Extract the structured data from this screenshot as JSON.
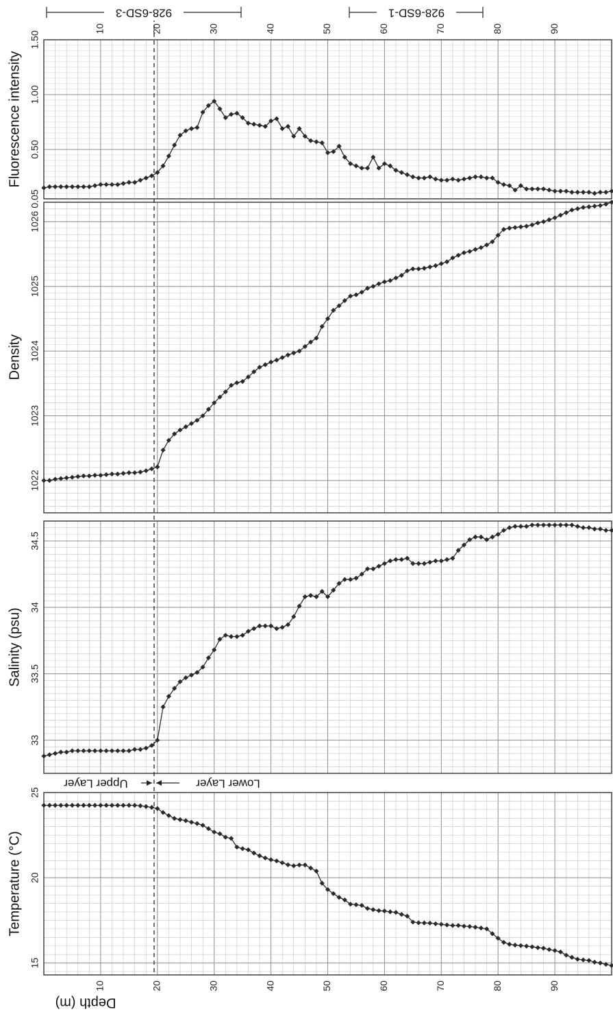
{
  "chart_data": [
    {
      "type": "line",
      "ylabel": "Fluorescence intensity",
      "xlabel": "",
      "xlim": [
        0,
        100
      ],
      "ylim": [
        0.05,
        1.5
      ],
      "x_ticks": [
        "10",
        "20",
        "30",
        "40",
        "50",
        "60",
        "70",
        "80",
        "90"
      ],
      "y_ticks": [
        "0.05",
        "0.50",
        "1.00",
        "1.50"
      ],
      "y_tick_values": [
        0.05,
        0.5,
        1.0,
        1.5
      ],
      "grid": true,
      "series": [
        {
          "x": [
            0,
            1,
            2,
            3,
            4,
            5,
            6,
            7,
            8,
            9,
            10,
            11,
            12,
            13,
            14,
            15,
            16,
            17,
            18,
            19,
            20,
            21,
            22,
            23,
            24,
            25,
            26,
            27,
            28,
            29,
            30,
            31,
            32,
            33,
            34,
            35,
            36,
            37,
            38,
            39,
            40,
            41,
            42,
            43,
            44,
            45,
            46,
            47,
            48,
            49,
            50,
            51,
            52,
            53,
            54,
            55,
            56,
            57,
            58,
            59,
            60,
            61,
            62,
            63,
            64,
            65,
            66,
            67,
            68,
            69,
            70,
            71,
            72,
            73,
            74,
            75,
            76,
            77,
            78,
            79,
            80,
            81,
            82,
            83,
            84,
            85,
            86,
            87,
            88,
            89,
            90,
            91,
            92,
            93,
            94,
            95,
            96,
            97,
            98,
            99,
            100
          ],
          "values": [
            0.15,
            0.16,
            0.16,
            0.16,
            0.16,
            0.16,
            0.16,
            0.16,
            0.16,
            0.17,
            0.18,
            0.18,
            0.18,
            0.18,
            0.19,
            0.2,
            0.2,
            0.22,
            0.24,
            0.26,
            0.29,
            0.35,
            0.44,
            0.54,
            0.63,
            0.67,
            0.69,
            0.7,
            0.84,
            0.9,
            0.94,
            0.87,
            0.79,
            0.82,
            0.83,
            0.79,
            0.74,
            0.73,
            0.72,
            0.71,
            0.76,
            0.78,
            0.69,
            0.71,
            0.62,
            0.69,
            0.62,
            0.58,
            0.57,
            0.56,
            0.47,
            0.48,
            0.53,
            0.43,
            0.37,
            0.35,
            0.33,
            0.33,
            0.43,
            0.33,
            0.37,
            0.35,
            0.31,
            0.29,
            0.27,
            0.25,
            0.24,
            0.24,
            0.25,
            0.23,
            0.22,
            0.22,
            0.23,
            0.22,
            0.23,
            0.24,
            0.25,
            0.25,
            0.24,
            0.24,
            0.2,
            0.18,
            0.17,
            0.13,
            0.17,
            0.14,
            0.14,
            0.14,
            0.14,
            0.13,
            0.12,
            0.12,
            0.12,
            0.11,
            0.11,
            0.11,
            0.11,
            0.1,
            0.11,
            0.11,
            0.12
          ]
        }
      ]
    },
    {
      "type": "line",
      "ylabel": "Density",
      "xlabel": "",
      "xlim": [
        0,
        100
      ],
      "ylim": [
        1021.5,
        1026.3
      ],
      "x_ticks": [],
      "y_ticks": [
        "1022",
        "1023",
        "1024",
        "1025",
        "1026"
      ],
      "y_tick_values": [
        1022,
        1023,
        1024,
        1025,
        1026
      ],
      "grid": true,
      "series": [
        {
          "x": [
            0,
            1,
            2,
            3,
            4,
            5,
            6,
            7,
            8,
            9,
            10,
            11,
            12,
            13,
            14,
            15,
            16,
            17,
            18,
            19,
            20,
            21,
            22,
            23,
            24,
            25,
            26,
            27,
            28,
            29,
            30,
            31,
            32,
            33,
            34,
            35,
            36,
            37,
            38,
            39,
            40,
            41,
            42,
            43,
            44,
            45,
            46,
            47,
            48,
            49,
            50,
            51,
            52,
            53,
            54,
            55,
            56,
            57,
            58,
            59,
            60,
            61,
            62,
            63,
            64,
            65,
            66,
            67,
            68,
            69,
            70,
            71,
            72,
            73,
            74,
            75,
            76,
            77,
            78,
            79,
            80,
            81,
            82,
            83,
            84,
            85,
            86,
            87,
            88,
            89,
            90,
            91,
            92,
            93,
            94,
            95,
            96,
            97,
            98,
            99,
            100
          ],
          "values": [
            1022.0,
            1022.0,
            1022.02,
            1022.03,
            1022.04,
            1022.05,
            1022.06,
            1022.07,
            1022.07,
            1022.08,
            1022.08,
            1022.09,
            1022.1,
            1022.1,
            1022.11,
            1022.12,
            1022.12,
            1022.13,
            1022.15,
            1022.18,
            1022.21,
            1022.47,
            1022.62,
            1022.72,
            1022.78,
            1022.83,
            1022.88,
            1022.93,
            1023.0,
            1023.1,
            1023.2,
            1023.29,
            1023.37,
            1023.47,
            1023.51,
            1023.53,
            1023.6,
            1023.68,
            1023.75,
            1023.79,
            1023.83,
            1023.86,
            1023.9,
            1023.94,
            1023.97,
            1024.0,
            1024.07,
            1024.14,
            1024.2,
            1024.38,
            1024.5,
            1024.63,
            1024.7,
            1024.78,
            1024.85,
            1024.87,
            1024.91,
            1024.97,
            1025.0,
            1025.04,
            1025.07,
            1025.09,
            1025.13,
            1025.17,
            1025.24,
            1025.27,
            1025.27,
            1025.28,
            1025.3,
            1025.32,
            1025.35,
            1025.38,
            1025.44,
            1025.48,
            1025.52,
            1025.54,
            1025.57,
            1025.6,
            1025.64,
            1025.69,
            1025.79,
            1025.88,
            1025.9,
            1025.91,
            1025.92,
            1025.93,
            1025.95,
            1025.98,
            1026.0,
            1026.03,
            1026.06,
            1026.1,
            1026.14,
            1026.18,
            1026.2,
            1026.22,
            1026.23,
            1026.24,
            1026.25,
            1026.27,
            1026.3
          ]
        }
      ]
    },
    {
      "type": "line",
      "ylabel": "Salinity (psu)",
      "xlabel": "",
      "xlim": [
        0,
        100
      ],
      "ylim": [
        32.75,
        34.65
      ],
      "x_ticks": [],
      "y_ticks": [
        "33",
        "33.5",
        "34",
        "34.5"
      ],
      "y_tick_values": [
        33,
        33.5,
        34,
        34.5
      ],
      "grid": true,
      "series": [
        {
          "x": [
            0,
            1,
            2,
            3,
            4,
            5,
            6,
            7,
            8,
            9,
            10,
            11,
            12,
            13,
            14,
            15,
            16,
            17,
            18,
            19,
            20,
            21,
            22,
            23,
            24,
            25,
            26,
            27,
            28,
            29,
            30,
            31,
            32,
            33,
            34,
            35,
            36,
            37,
            38,
            39,
            40,
            41,
            42,
            43,
            44,
            45,
            46,
            47,
            48,
            49,
            50,
            51,
            52,
            53,
            54,
            55,
            56,
            57,
            58,
            59,
            60,
            61,
            62,
            63,
            64,
            65,
            66,
            67,
            68,
            69,
            70,
            71,
            72,
            73,
            74,
            75,
            76,
            77,
            78,
            79,
            80,
            81,
            82,
            83,
            84,
            85,
            86,
            87,
            88,
            89,
            90,
            91,
            92,
            93,
            94,
            95,
            96,
            97,
            98,
            99,
            100
          ],
          "values": [
            32.88,
            32.89,
            32.9,
            32.91,
            32.91,
            32.92,
            32.92,
            32.92,
            32.92,
            32.92,
            32.92,
            32.92,
            32.92,
            32.92,
            32.92,
            32.92,
            32.93,
            32.93,
            32.94,
            32.96,
            33.0,
            33.25,
            33.33,
            33.39,
            33.44,
            33.47,
            33.49,
            33.51,
            33.55,
            33.62,
            33.68,
            33.76,
            33.79,
            33.78,
            33.78,
            33.79,
            33.82,
            33.84,
            33.86,
            33.86,
            33.86,
            33.84,
            33.85,
            33.87,
            33.93,
            34.01,
            34.08,
            34.09,
            34.08,
            34.12,
            34.08,
            34.13,
            34.18,
            34.21,
            34.21,
            34.22,
            34.25,
            34.29,
            34.29,
            34.31,
            34.33,
            34.35,
            34.36,
            34.36,
            34.37,
            34.33,
            34.33,
            34.33,
            34.34,
            34.35,
            34.35,
            34.36,
            34.37,
            34.43,
            34.47,
            34.51,
            34.53,
            34.53,
            34.51,
            34.53,
            34.55,
            34.58,
            34.6,
            34.61,
            34.61,
            34.61,
            34.62,
            34.62,
            34.62,
            34.62,
            34.62,
            34.62,
            34.62,
            34.62,
            34.61,
            34.6,
            34.6,
            34.59,
            34.59,
            34.58,
            34.58
          ]
        }
      ]
    },
    {
      "type": "line",
      "ylabel": "Temperature (°C)",
      "xlabel": "Depth (m)",
      "xlim": [
        0,
        100
      ],
      "ylim": [
        14.3,
        25
      ],
      "x_ticks": [
        "10",
        "20",
        "30",
        "40",
        "50",
        "60",
        "70",
        "80",
        "90"
      ],
      "y_ticks": [
        "15",
        "20",
        "25"
      ],
      "y_tick_values": [
        15,
        20,
        25
      ],
      "grid": true,
      "series": [
        {
          "x": [
            0,
            1,
            2,
            3,
            4,
            5,
            6,
            7,
            8,
            9,
            10,
            11,
            12,
            13,
            14,
            15,
            16,
            17,
            18,
            19,
            20,
            21,
            22,
            23,
            24,
            25,
            26,
            27,
            28,
            29,
            30,
            31,
            32,
            33,
            34,
            35,
            36,
            37,
            38,
            39,
            40,
            41,
            42,
            43,
            44,
            45,
            46,
            47,
            48,
            49,
            50,
            51,
            52,
            53,
            54,
            55,
            56,
            57,
            58,
            59,
            60,
            61,
            62,
            63,
            64,
            65,
            66,
            67,
            68,
            69,
            70,
            71,
            72,
            73,
            74,
            75,
            76,
            77,
            78,
            79,
            80,
            81,
            82,
            83,
            84,
            85,
            86,
            87,
            88,
            89,
            90,
            91,
            92,
            93,
            94,
            95,
            96,
            97,
            98,
            99,
            100
          ],
          "values": [
            24.25,
            24.25,
            24.25,
            24.25,
            24.25,
            24.25,
            24.25,
            24.25,
            24.25,
            24.25,
            24.25,
            24.25,
            24.25,
            24.25,
            24.25,
            24.25,
            24.25,
            24.22,
            24.18,
            24.13,
            24.06,
            23.83,
            23.65,
            23.48,
            23.41,
            23.35,
            23.26,
            23.18,
            23.08,
            22.88,
            22.68,
            22.58,
            22.38,
            22.31,
            21.8,
            21.71,
            21.64,
            21.45,
            21.29,
            21.16,
            21.06,
            20.99,
            20.88,
            20.76,
            20.7,
            20.75,
            20.75,
            20.57,
            20.39,
            19.68,
            19.31,
            19.07,
            18.85,
            18.7,
            18.45,
            18.42,
            18.38,
            18.2,
            18.13,
            18.07,
            18.05,
            18.0,
            17.97,
            17.85,
            17.75,
            17.4,
            17.36,
            17.35,
            17.34,
            17.3,
            17.27,
            17.23,
            17.2,
            17.2,
            17.16,
            17.14,
            17.1,
            17.05,
            17.0,
            16.72,
            16.45,
            16.21,
            16.1,
            16.05,
            16.02,
            15.99,
            15.95,
            15.9,
            15.87,
            15.79,
            15.73,
            15.65,
            15.46,
            15.33,
            15.22,
            15.18,
            15.15,
            15.05,
            15.0,
            14.92,
            14.85
          ]
        }
      ]
    }
  ],
  "cast_labels": [
    "928-6SD-3",
    "928-6SD-1"
  ],
  "layer_labels": {
    "upper": "Upper Layer",
    "lower": "Lower Layer"
  },
  "boundary_depth": 20,
  "colors": {
    "line": "#2a2a2a",
    "grid": "#8c8c8c",
    "grid_minor": "#c4c4c4",
    "frame": "#333333"
  }
}
